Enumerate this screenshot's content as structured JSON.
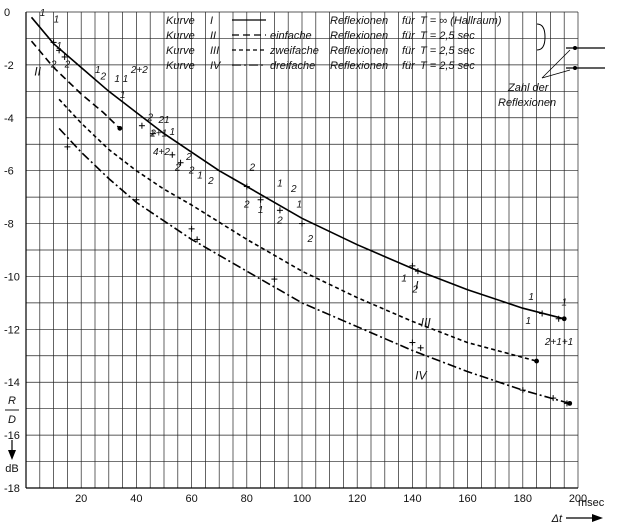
{
  "chart_data": {
    "type": "line",
    "title": "",
    "xlabel": "Δt",
    "x_unit": "msec",
    "ylabel_lines": [
      "R",
      "D"
    ],
    "y_unit": "dB",
    "xlim": [
      0,
      200
    ],
    "ylim": [
      -18,
      0
    ],
    "x_ticks": [
      20,
      40,
      60,
      80,
      100,
      120,
      140,
      160,
      180,
      200
    ],
    "x_tick_labels": [
      "20",
      "40",
      "60",
      "80",
      "100",
      "120",
      "140",
      "160",
      "180",
      "200"
    ],
    "y_ticks": [
      0,
      -2,
      -4,
      -6,
      -8,
      -10,
      -12,
      -14,
      -16,
      -18
    ],
    "y_tick_labels": [
      "0",
      "-2",
      "-4",
      "-6",
      "-8",
      "-10",
      "-12",
      "-14",
      "-16",
      "-18"
    ],
    "grid": true,
    "legend": {
      "position": "top",
      "rows": [
        {
          "kurve": "Kurve",
          "num": "I",
          "style": "solid",
          "typ": "",
          "refl": "Reflexionen",
          "fuer": "für",
          "t": "T = ∞ (Hallraum)"
        },
        {
          "kurve": "Kurve",
          "num": "II",
          "style": "dashed",
          "typ": "einfache",
          "refl": "Reflexionen",
          "fuer": "für",
          "t": "T = 2,5 sec"
        },
        {
          "kurve": "Kurve",
          "num": "III",
          "style": "short-dashed",
          "typ": "zweifache",
          "refl": "Reflexionen",
          "fuer": "für",
          "t": "T = 2,5 sec"
        },
        {
          "kurve": "Kurve",
          "num": "IV",
          "style": "dash-dot",
          "typ": "dreifache",
          "refl": "Reflexionen",
          "fuer": "für",
          "t": "T = 2,5 sec"
        }
      ],
      "side_label": [
        "Zahl der",
        "Reflexionen"
      ]
    },
    "series": [
      {
        "name": "I",
        "style": "solid",
        "x": [
          2,
          10,
          20,
          30,
          40,
          50,
          60,
          70,
          80,
          100,
          120,
          140,
          160,
          180,
          195
        ],
        "y": [
          -0.2,
          -1.2,
          -2.1,
          -3.0,
          -3.8,
          -4.6,
          -5.3,
          -6.0,
          -6.6,
          -7.8,
          -8.8,
          -9.7,
          -10.5,
          -11.2,
          -11.6
        ]
      },
      {
        "name": "II",
        "style": "dashed",
        "x": [
          2,
          10,
          20,
          28,
          34
        ],
        "y": [
          -1.1,
          -2.1,
          -3.1,
          -3.8,
          -4.4
        ]
      },
      {
        "name": "III",
        "style": "short-dashed",
        "x": [
          12,
          20,
          30,
          40,
          50,
          60,
          80,
          100,
          120,
          140,
          160,
          185
        ],
        "y": [
          -3.3,
          -4.2,
          -5.2,
          -6.0,
          -6.7,
          -7.3,
          -8.6,
          -9.8,
          -10.8,
          -11.7,
          -12.5,
          -13.2
        ]
      },
      {
        "name": "IV",
        "style": "dash-dot",
        "x": [
          12,
          20,
          30,
          40,
          50,
          60,
          80,
          100,
          120,
          140,
          160,
          180,
          197
        ],
        "y": [
          -4.4,
          -5.3,
          -6.3,
          -7.2,
          -7.9,
          -8.6,
          -9.8,
          -11.0,
          -11.9,
          -12.8,
          -13.6,
          -14.3,
          -14.8
        ]
      }
    ],
    "curve_labels": [
      {
        "series": "I",
        "text": "I",
        "x": 141,
        "y": -10.5
      },
      {
        "series": "II",
        "text": "II",
        "x": 3,
        "y": -2.4
      },
      {
        "series": "III",
        "text": "III",
        "x": 143,
        "y": -11.9
      },
      {
        "series": "IV",
        "text": "IV",
        "x": 141,
        "y": -13.9
      }
    ],
    "reflection_annotations": [
      {
        "text": "1",
        "x": 5,
        "y": -0.15
      },
      {
        "text": "1",
        "x": 10,
        "y": -0.4
      },
      {
        "text": "1",
        "x": 11,
        "y": -1.4
      },
      {
        "text": "2",
        "x": 9,
        "y": -2.1
      },
      {
        "text": "2",
        "x": 14,
        "y": -2.1
      },
      {
        "text": "1",
        "x": 25,
        "y": -2.3
      },
      {
        "text": "2",
        "x": 27,
        "y": -2.55
      },
      {
        "text": "1",
        "x": 32,
        "y": -2.65
      },
      {
        "text": "1",
        "x": 35,
        "y": -2.65
      },
      {
        "text": "2+2",
        "x": 38,
        "y": -2.3
      },
      {
        "text": "1",
        "x": 34,
        "y": -3.25
      },
      {
        "text": "2",
        "x": 44,
        "y": -4.1
      },
      {
        "text": "2",
        "x": 48,
        "y": -4.2
      },
      {
        "text": "1",
        "x": 50,
        "y": -4.2
      },
      {
        "text": "2+1",
        "x": 45,
        "y": -4.7
      },
      {
        "text": "1",
        "x": 52,
        "y": -4.65
      },
      {
        "text": "4+2",
        "x": 46,
        "y": -5.4
      },
      {
        "text": "2",
        "x": 58,
        "y": -5.6
      },
      {
        "text": "2",
        "x": 54,
        "y": -6.0
      },
      {
        "text": "2",
        "x": 59,
        "y": -6.1
      },
      {
        "text": "1",
        "x": 62,
        "y": -6.3
      },
      {
        "text": "2",
        "x": 66,
        "y": -6.5
      },
      {
        "text": "2",
        "x": 81,
        "y": -6.0
      },
      {
        "text": "2",
        "x": 79,
        "y": -7.4
      },
      {
        "text": "1",
        "x": 84,
        "y": -7.6
      },
      {
        "text": "1",
        "x": 91,
        "y": -6.6
      },
      {
        "text": "2",
        "x": 96,
        "y": -6.8
      },
      {
        "text": "2",
        "x": 91,
        "y": -8.0
      },
      {
        "text": "1",
        "x": 98,
        "y": -7.4
      },
      {
        "text": "2",
        "x": 102,
        "y": -8.7
      },
      {
        "text": "1",
        "x": 136,
        "y": -10.2
      },
      {
        "text": "2",
        "x": 140,
        "y": -10.6
      },
      {
        "text": "1",
        "x": 182,
        "y": -10.9
      },
      {
        "text": "1",
        "x": 181,
        "y": -11.8
      },
      {
        "text": "1",
        "x": 194,
        "y": -11.1
      },
      {
        "text": "2+1+1",
        "x": 188,
        "y": -12.6
      }
    ],
    "reflection_markers": [
      {
        "x": 10,
        "y": -1.15
      },
      {
        "x": 12,
        "y": -1.45
      },
      {
        "x": 14,
        "y": -1.7
      },
      {
        "x": 42,
        "y": -4.3
      },
      {
        "x": 46,
        "y": -4.6
      },
      {
        "x": 53,
        "y": -5.4
      },
      {
        "x": 56,
        "y": -5.7
      },
      {
        "x": 80,
        "y": -6.6
      },
      {
        "x": 85,
        "y": -7.1
      },
      {
        "x": 92,
        "y": -7.5
      },
      {
        "x": 100,
        "y": -8.0
      },
      {
        "x": 140,
        "y": -9.6
      },
      {
        "x": 142,
        "y": -9.8
      },
      {
        "x": 187,
        "y": -11.4
      },
      {
        "x": 193,
        "y": -11.6
      },
      {
        "x": 15,
        "y": -5.1
      },
      {
        "x": 40,
        "y": -7.1
      },
      {
        "x": 60,
        "y": -8.2
      },
      {
        "x": 62,
        "y": -8.6
      },
      {
        "x": 90,
        "y": -10.1
      },
      {
        "x": 140,
        "y": -12.5
      },
      {
        "x": 143,
        "y": -12.7
      },
      {
        "x": 180,
        "y": -14.3
      },
      {
        "x": 191,
        "y": -14.6
      },
      {
        "x": 196,
        "y": -14.8
      }
    ]
  }
}
